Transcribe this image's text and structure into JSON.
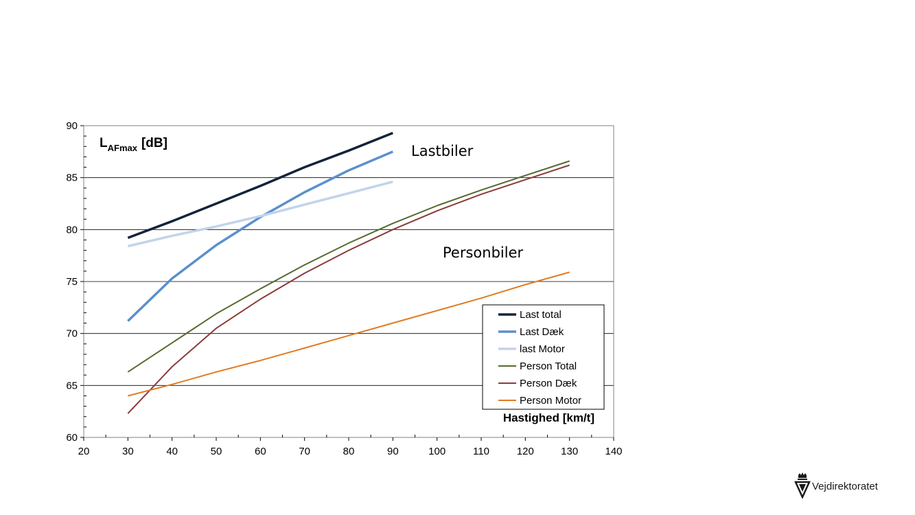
{
  "chart_data": {
    "type": "line",
    "x": [
      30,
      40,
      50,
      60,
      70,
      80,
      90,
      100,
      110,
      120,
      130
    ],
    "xlim": [
      20,
      140
    ],
    "ylim": [
      60,
      90
    ],
    "xticks": [
      "20",
      "30",
      "40",
      "50",
      "60",
      "70",
      "80",
      "90",
      "100",
      "110",
      "120",
      "130",
      "140"
    ],
    "yticks": [
      "60",
      "65",
      "70",
      "75",
      "80",
      "85",
      "90"
    ],
    "ylabel_main": "L",
    "ylabel_sub": "AFmax",
    "ylabel_unit": "[dB]",
    "xlabel": "Hastighed  [km/t]",
    "grid": "horizontal",
    "legend_position": "bottom-right",
    "annotations": [
      "Lastbiler",
      "Personbiler"
    ],
    "series": [
      {
        "name": "Last total",
        "color": "#14233a",
        "width": 3.5,
        "values": [
          79.2,
          80.8,
          82.5,
          84.2,
          86.0,
          87.6,
          89.3,
          null,
          null,
          null,
          null
        ]
      },
      {
        "name": "Last Dæk",
        "color": "#5b8fcb",
        "width": 3.5,
        "values": [
          71.2,
          75.3,
          78.5,
          81.2,
          83.6,
          85.7,
          87.5,
          null,
          null,
          null,
          null
        ]
      },
      {
        "name": "last Motor",
        "color": "#c3d3ea",
        "width": 3.5,
        "values": [
          78.4,
          79.4,
          80.3,
          81.3,
          82.4,
          83.5,
          84.6,
          null,
          null,
          null,
          null
        ]
      },
      {
        "name": "Person Total",
        "color": "#556b2f",
        "width": 2,
        "values": [
          66.3,
          69.1,
          71.9,
          74.3,
          76.6,
          78.7,
          80.6,
          82.3,
          83.8,
          85.2,
          86.6
        ]
      },
      {
        "name": "Person Dæk",
        "color": "#8b3a3a",
        "width": 2,
        "values": [
          62.3,
          66.8,
          70.5,
          73.3,
          75.8,
          78.0,
          80.0,
          81.8,
          83.4,
          84.8,
          86.2
        ]
      },
      {
        "name": "Person Motor",
        "color": "#e07b22",
        "width": 2,
        "values": [
          64.0,
          65.1,
          66.3,
          67.4,
          68.6,
          69.8,
          71.0,
          72.2,
          73.4,
          74.7,
          75.9
        ]
      }
    ]
  },
  "brand": {
    "name": "Vejdirektoratet"
  }
}
